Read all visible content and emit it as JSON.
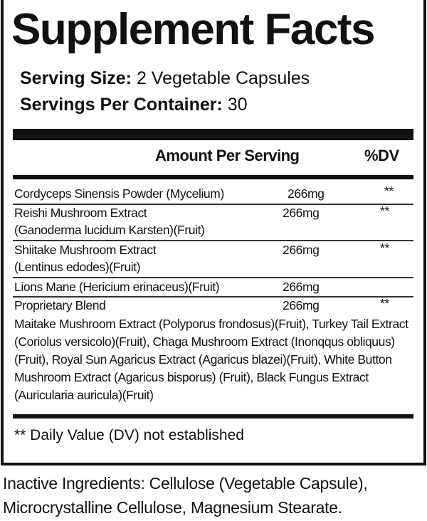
{
  "title": "Supplement Facts",
  "serving_size": {
    "label": "Serving Size:",
    "value": "2 Vegetable Capsules"
  },
  "servings_per_container": {
    "label": "Servings Per Container:",
    "value": "30"
  },
  "header": {
    "amount": "Amount Per Serving",
    "dv": "%DV"
  },
  "rows": [
    {
      "name": "Cordyceps Sinensis Powder (Mycelium)",
      "sub": "",
      "amount": "266mg",
      "dv": "**"
    },
    {
      "name": "Reishi Mushroom Extract",
      "sub": "(Ganoderma lucidum Karsten)(Fruit)",
      "amount": "266mg",
      "dv": "**"
    },
    {
      "name": "Shiitake Mushroom Extract",
      "sub": "(Lentinus edodes)(Fruit)",
      "amount": "266mg",
      "dv": "**"
    },
    {
      "name": "Lions Mane (Hericium erinaceus)(Fruit)",
      "sub": "",
      "amount": "266mg",
      "dv": ""
    },
    {
      "name": "Proprietary Blend",
      "sub": "",
      "amount": "266mg",
      "dv": "**"
    }
  ],
  "blend_text": "Maitake Mushroom Extract (Polyporus frondosus)(Fruit), Turkey Tail Extract (Coriolus versicolo)(Fruit), Chaga Mushroom Extract (Inonqqus obliquus)(Fruit), Royal Sun Agaricus Extract (Agaricus blazei)(Fruit), White Button Mushroom Extract (Agaricus bisporus) (Fruit), Black Fungus Extract (Auricularia auricula)(Fruit)",
  "footnote": "** Daily Value (DV) not established",
  "inactive": "Inactive Ingredients: Cellulose (Vegetable Capsule), Microcrystalline Cellulose, Magnesium Stearate."
}
